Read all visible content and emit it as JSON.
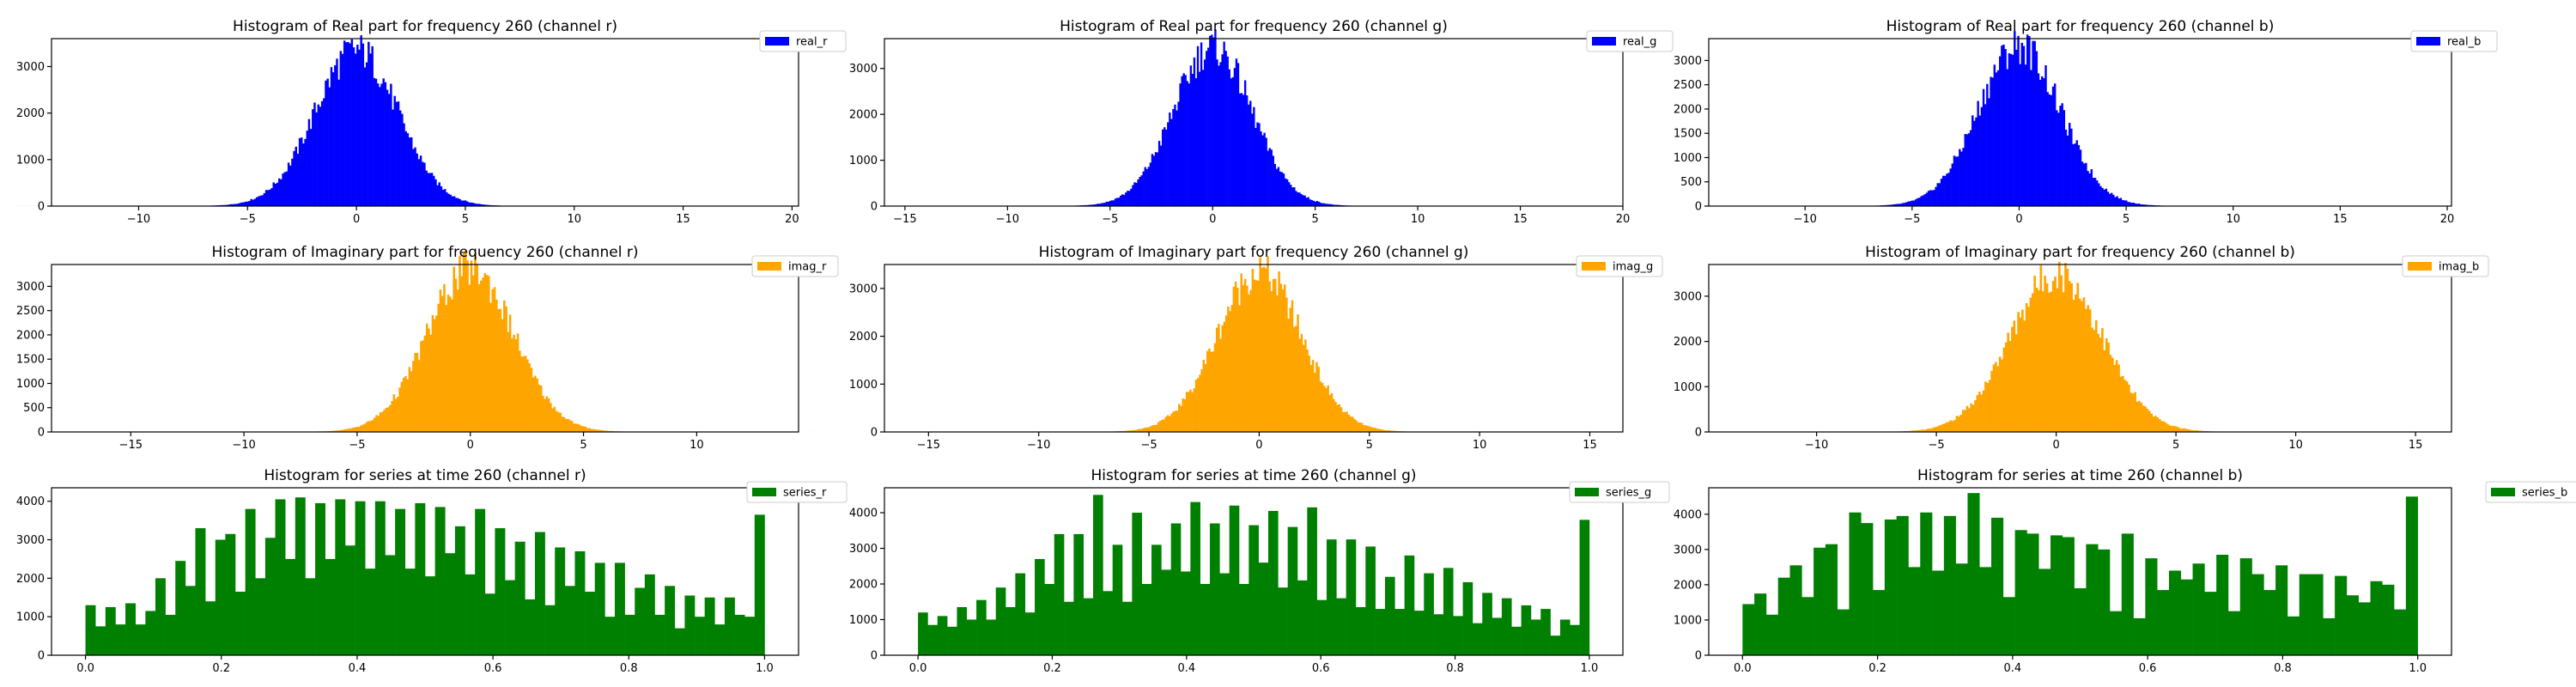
{
  "chart_data": [
    {
      "id": "real_r",
      "type": "bar",
      "title": "Histogram of Real part for frequency 260 (channel r)",
      "legend": "real_r",
      "color": "#0000ff",
      "legend_position": "top-right-outside",
      "distribution": {
        "kind": "normal",
        "mean": 0,
        "std": 1.9,
        "peak": 3350,
        "bins": 400
      },
      "xlim": [
        -14,
        20.3
      ],
      "ylim": [
        0,
        3600
      ],
      "xticks": [
        {
          "v": -10,
          "t": "−10"
        },
        {
          "v": -5,
          "t": "−5"
        },
        {
          "v": 0,
          "t": "0"
        },
        {
          "v": 5,
          "t": "5"
        },
        {
          "v": 10,
          "t": "10"
        },
        {
          "v": 15,
          "t": "15"
        },
        {
          "v": 20,
          "t": "20"
        }
      ],
      "yticks": [
        {
          "v": 0,
          "t": "0"
        },
        {
          "v": 1000,
          "t": "1000"
        },
        {
          "v": 2000,
          "t": "2000"
        },
        {
          "v": 3000,
          "t": "3000"
        }
      ]
    },
    {
      "id": "real_g",
      "type": "bar",
      "title": "Histogram of Real part for frequency 260 (channel g)",
      "legend": "real_g",
      "color": "#0000ff",
      "legend_position": "top-right-outside",
      "distribution": {
        "kind": "normal",
        "mean": 0,
        "std": 1.9,
        "peak": 3450,
        "bins": 400
      },
      "xlim": [
        -16,
        20
      ],
      "ylim": [
        0,
        3650
      ],
      "xticks": [
        {
          "v": -15,
          "t": "−15"
        },
        {
          "v": -10,
          "t": "−10"
        },
        {
          "v": -5,
          "t": "−5"
        },
        {
          "v": 0,
          "t": "0"
        },
        {
          "v": 5,
          "t": "5"
        },
        {
          "v": 10,
          "t": "10"
        },
        {
          "v": 15,
          "t": "15"
        },
        {
          "v": 20,
          "t": "20"
        }
      ],
      "yticks": [
        {
          "v": 0,
          "t": "0"
        },
        {
          "v": 1000,
          "t": "1000"
        },
        {
          "v": 2000,
          "t": "2000"
        },
        {
          "v": 3000,
          "t": "3000"
        }
      ]
    },
    {
      "id": "real_b",
      "type": "bar",
      "title": "Histogram of Real part for frequency 260 (channel b)",
      "legend": "real_b",
      "color": "#0000ff",
      "legend_position": "top-right-outside",
      "distribution": {
        "kind": "normal",
        "mean": 0,
        "std": 1.9,
        "peak": 3300,
        "bins": 400
      },
      "xlim": [
        -14.5,
        20.2
      ],
      "ylim": [
        0,
        3450
      ],
      "xticks": [
        {
          "v": -10,
          "t": "−10"
        },
        {
          "v": -5,
          "t": "−5"
        },
        {
          "v": 0,
          "t": "0"
        },
        {
          "v": 5,
          "t": "5"
        },
        {
          "v": 10,
          "t": "10"
        },
        {
          "v": 15,
          "t": "15"
        },
        {
          "v": 20,
          "t": "20"
        }
      ],
      "yticks": [
        {
          "v": 0,
          "t": "0"
        },
        {
          "v": 500,
          "t": "500"
        },
        {
          "v": 1000,
          "t": "1000"
        },
        {
          "v": 1500,
          "t": "1500"
        },
        {
          "v": 2000,
          "t": "2000"
        },
        {
          "v": 2500,
          "t": "2500"
        },
        {
          "v": 3000,
          "t": "3000"
        }
      ]
    },
    {
      "id": "imag_r",
      "type": "bar",
      "title": "Histogram of Imaginary part for frequency 260 (channel r)",
      "legend": "imag_r",
      "color": "#ffa500",
      "legend_position": "top-right-outside",
      "distribution": {
        "kind": "normal",
        "mean": 0,
        "std": 1.9,
        "peak": 3350,
        "bins": 400
      },
      "xlim": [
        -18.5,
        14.5
      ],
      "ylim": [
        0,
        3450
      ],
      "xticks": [
        {
          "v": -15,
          "t": "−15"
        },
        {
          "v": -10,
          "t": "−10"
        },
        {
          "v": -5,
          "t": "−5"
        },
        {
          "v": 0,
          "t": "0"
        },
        {
          "v": 5,
          "t": "5"
        },
        {
          "v": 10,
          "t": "10"
        }
      ],
      "yticks": [
        {
          "v": 0,
          "t": "0"
        },
        {
          "v": 500,
          "t": "500"
        },
        {
          "v": 1000,
          "t": "1000"
        },
        {
          "v": 1500,
          "t": "1500"
        },
        {
          "v": 2000,
          "t": "2000"
        },
        {
          "v": 2500,
          "t": "2500"
        },
        {
          "v": 3000,
          "t": "3000"
        }
      ]
    },
    {
      "id": "imag_g",
      "type": "bar",
      "title": "Histogram of Imaginary part for frequency 260 (channel g)",
      "legend": "imag_g",
      "color": "#ffa500",
      "legend_position": "top-right-outside",
      "distribution": {
        "kind": "normal",
        "mean": 0,
        "std": 1.9,
        "peak": 3350,
        "bins": 400
      },
      "xlim": [
        -17,
        16.5
      ],
      "ylim": [
        0,
        3500
      ],
      "xticks": [
        {
          "v": -15,
          "t": "−15"
        },
        {
          "v": -10,
          "t": "−10"
        },
        {
          "v": -5,
          "t": "−5"
        },
        {
          "v": 0,
          "t": "0"
        },
        {
          "v": 5,
          "t": "5"
        },
        {
          "v": 10,
          "t": "10"
        },
        {
          "v": 15,
          "t": "15"
        }
      ],
      "yticks": [
        {
          "v": 0,
          "t": "0"
        },
        {
          "v": 1000,
          "t": "1000"
        },
        {
          "v": 2000,
          "t": "2000"
        },
        {
          "v": 3000,
          "t": "3000"
        }
      ]
    },
    {
      "id": "imag_b",
      "type": "bar",
      "title": "Histogram of Imaginary part for frequency 260 (channel b)",
      "legend": "imag_b",
      "color": "#ffa500",
      "legend_position": "top-right-outside",
      "distribution": {
        "kind": "normal",
        "mean": 0,
        "std": 1.9,
        "peak": 3500,
        "bins": 400
      },
      "xlim": [
        -14.5,
        16.5
      ],
      "ylim": [
        0,
        3700
      ],
      "xticks": [
        {
          "v": -10,
          "t": "−10"
        },
        {
          "v": -5,
          "t": "−5"
        },
        {
          "v": 0,
          "t": "0"
        },
        {
          "v": 5,
          "t": "5"
        },
        {
          "v": 10,
          "t": "10"
        },
        {
          "v": 15,
          "t": "15"
        }
      ],
      "yticks": [
        {
          "v": 0,
          "t": "0"
        },
        {
          "v": 1000,
          "t": "1000"
        },
        {
          "v": 2000,
          "t": "2000"
        },
        {
          "v": 3000,
          "t": "3000"
        }
      ]
    },
    {
      "id": "series_r",
      "type": "bar",
      "title": "Histogram for series at time 260 (channel r)",
      "legend": "series_r",
      "color": "#008000",
      "legend_position": "top-right-outside",
      "bin_range": [
        0,
        1
      ],
      "values": [
        1300,
        750,
        1250,
        800,
        1350,
        800,
        1150,
        2000,
        1050,
        2450,
        1800,
        3300,
        1400,
        3000,
        3150,
        1650,
        3800,
        2000,
        3050,
        4050,
        2500,
        4100,
        2000,
        3950,
        2500,
        4050,
        2850,
        4000,
        2250,
        4000,
        2600,
        3800,
        2250,
        3950,
        2050,
        3850,
        2650,
        3350,
        2100,
        3800,
        1600,
        3300,
        1950,
        2950,
        1450,
        3200,
        1300,
        2800,
        1800,
        2700,
        1650,
        2400,
        1000,
        2400,
        1050,
        1750,
        2100,
        1050,
        1800,
        700,
        1550,
        1000,
        1500,
        800,
        1500,
        1050,
        1000,
        3650
      ],
      "xlim": [
        -0.05,
        1.05
      ],
      "ylim": [
        0,
        4350
      ],
      "xticks": [
        {
          "v": 0,
          "t": "0.0"
        },
        {
          "v": 0.2,
          "t": "0.2"
        },
        {
          "v": 0.4,
          "t": "0.4"
        },
        {
          "v": 0.6,
          "t": "0.6"
        },
        {
          "v": 0.8,
          "t": "0.8"
        },
        {
          "v": 1,
          "t": "1.0"
        }
      ],
      "yticks": [
        {
          "v": 0,
          "t": "0"
        },
        {
          "v": 1000,
          "t": "1000"
        },
        {
          "v": 2000,
          "t": "2000"
        },
        {
          "v": 3000,
          "t": "3000"
        },
        {
          "v": 4000,
          "t": "4000"
        }
      ]
    },
    {
      "id": "series_g",
      "type": "bar",
      "title": "Histogram for series at time 260 (channel g)",
      "legend": "series_g",
      "color": "#008000",
      "legend_position": "top-right-outside",
      "bin_range": [
        0,
        1
      ],
      "values": [
        1200,
        850,
        1100,
        800,
        1350,
        1000,
        1550,
        1000,
        1900,
        1350,
        2300,
        1200,
        2700,
        2000,
        3400,
        1500,
        3400,
        1600,
        4500,
        1800,
        3100,
        1500,
        4000,
        2000,
        3100,
        2400,
        3700,
        2350,
        4300,
        2000,
        3700,
        2300,
        4200,
        2000,
        3650,
        2600,
        4050,
        1900,
        3600,
        2100,
        4150,
        1550,
        3250,
        1600,
        3250,
        1350,
        3050,
        1300,
        2200,
        1300,
        2800,
        1250,
        2300,
        1150,
        2450,
        1100,
        2050,
        900,
        1750,
        1050,
        1600,
        800,
        1400,
        1000,
        1300,
        550,
        1000,
        850,
        3800
      ],
      "xlim": [
        -0.05,
        1.05
      ],
      "ylim": [
        0,
        4700
      ],
      "xticks": [
        {
          "v": 0,
          "t": "0.0"
        },
        {
          "v": 0.2,
          "t": "0.2"
        },
        {
          "v": 0.4,
          "t": "0.4"
        },
        {
          "v": 0.6,
          "t": "0.6"
        },
        {
          "v": 0.8,
          "t": "0.8"
        },
        {
          "v": 1,
          "t": "1.0"
        }
      ],
      "yticks": [
        {
          "v": 0,
          "t": "0"
        },
        {
          "v": 1000,
          "t": "1000"
        },
        {
          "v": 2000,
          "t": "2000"
        },
        {
          "v": 3000,
          "t": "3000"
        },
        {
          "v": 4000,
          "t": "4000"
        }
      ]
    },
    {
      "id": "series_b",
      "type": "bar",
      "title": "Histogram for series at time 260 (channel b)",
      "legend": "series_b",
      "color": "#008000",
      "legend_position": "top-right-outside",
      "bin_range": [
        0,
        1
      ],
      "values": [
        1450,
        1750,
        1150,
        2200,
        2550,
        1650,
        3050,
        3150,
        1300,
        4050,
        3750,
        1850,
        3850,
        3950,
        2500,
        4050,
        2400,
        3950,
        2600,
        4600,
        2500,
        3900,
        1650,
        3550,
        3450,
        2450,
        3400,
        3350,
        1900,
        3150,
        3000,
        1250,
        3450,
        1050,
        2750,
        1850,
        2400,
        2150,
        2600,
        1800,
        2850,
        1250,
        2750,
        2300,
        1850,
        2550,
        1100,
        2300,
        2300,
        1050,
        2250,
        1700,
        1500,
        2100,
        2000,
        1300,
        4500
      ],
      "xlim": [
        -0.05,
        1.05
      ],
      "ylim": [
        0,
        4750
      ],
      "xticks": [
        {
          "v": 0,
          "t": "0.0"
        },
        {
          "v": 0.2,
          "t": "0.2"
        },
        {
          "v": 0.4,
          "t": "0.4"
        },
        {
          "v": 0.6,
          "t": "0.6"
        },
        {
          "v": 0.8,
          "t": "0.8"
        },
        {
          "v": 1,
          "t": "1.0"
        }
      ],
      "yticks": [
        {
          "v": 0,
          "t": "0"
        },
        {
          "v": 1000,
          "t": "1000"
        },
        {
          "v": 2000,
          "t": "2000"
        },
        {
          "v": 3000,
          "t": "3000"
        },
        {
          "v": 4000,
          "t": "4000"
        }
      ]
    }
  ]
}
